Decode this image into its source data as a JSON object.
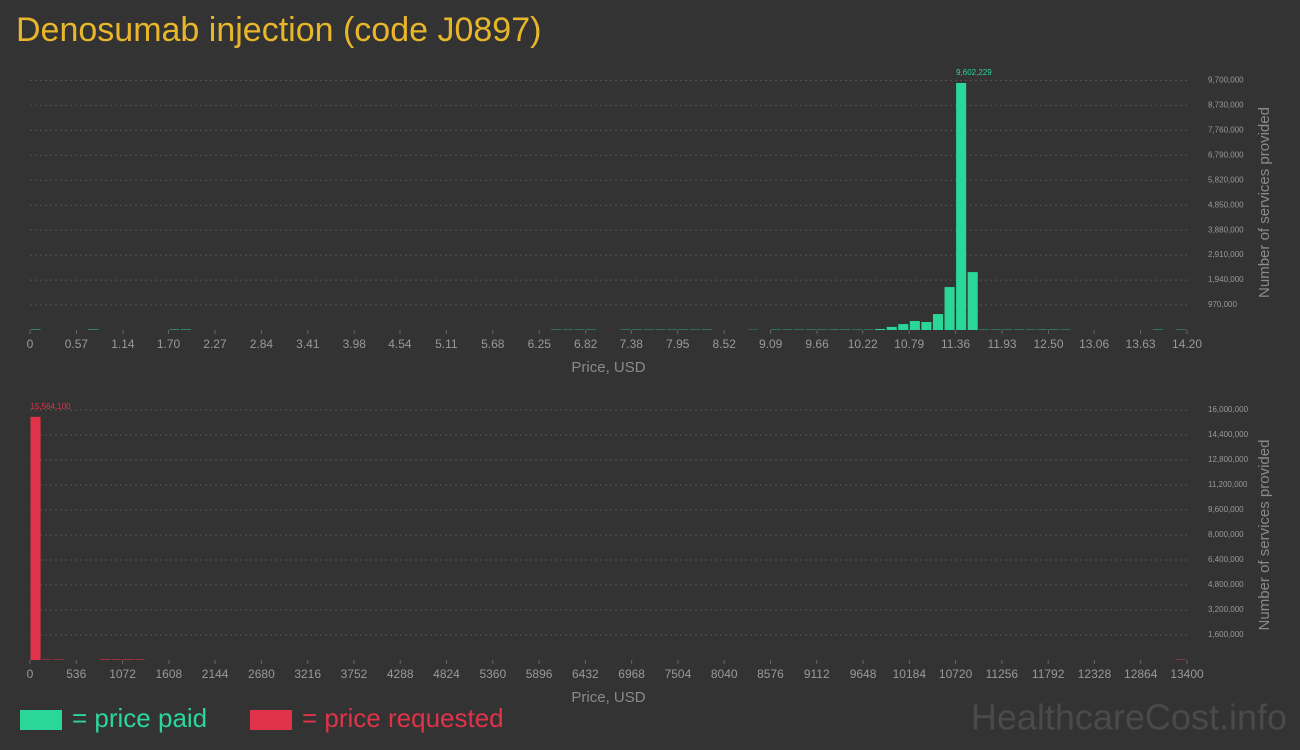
{
  "title": "Denosumab injection (code J0897)",
  "watermark": "HealthcareCost.info",
  "chart_data": [
    {
      "type": "histogram",
      "x_label": "Price, USD",
      "y_label": "Number of services provided",
      "grid": true,
      "bins": [
        0,
        0.142,
        0.284,
        0.426,
        0.568,
        0.71,
        0.852,
        0.994,
        1.136,
        1.278,
        1.42,
        1.562,
        1.704,
        1.846,
        1.988,
        2.13,
        2.272,
        2.414,
        2.556,
        2.698,
        2.84,
        2.982,
        3.124,
        3.266,
        3.408,
        3.55,
        3.692,
        3.834,
        3.976,
        4.118,
        4.26,
        4.402,
        4.544,
        4.686,
        4.828,
        4.97,
        5.112,
        5.254,
        5.396,
        5.538,
        5.68,
        5.822,
        5.964,
        6.106,
        6.248,
        6.39,
        6.532,
        6.674,
        6.816,
        6.958,
        7.1,
        7.242,
        7.384,
        7.526,
        7.668,
        7.81,
        7.952,
        8.094,
        8.236,
        8.378,
        8.52,
        8.662,
        8.804,
        8.946,
        9.088,
        9.23,
        9.372,
        9.514,
        9.656,
        9.798,
        9.94,
        10.082,
        10.224,
        10.366,
        10.508,
        10.65,
        10.792,
        10.934,
        11.076,
        11.218,
        11.36,
        11.502,
        11.644,
        11.786,
        11.928,
        12.07,
        12.212,
        12.354,
        12.496,
        12.638,
        12.78,
        12.922,
        13.064,
        13.206,
        13.348,
        13.49,
        13.632,
        13.774,
        13.916,
        14.058,
        14.2
      ],
      "series": [
        {
          "name": "= price paid",
          "color": "#2bd699",
          "values": [
            20000,
            0,
            0,
            0,
            0,
            20000,
            0,
            0,
            0,
            0,
            0,
            0,
            20000,
            20000,
            0,
            0,
            0,
            0,
            0,
            0,
            0,
            0,
            0,
            0,
            0,
            0,
            0,
            0,
            0,
            0,
            0,
            0,
            0,
            0,
            0,
            0,
            0,
            0,
            0,
            0,
            0,
            0,
            0,
            0,
            0,
            15000,
            15000,
            15000,
            15000,
            0,
            0,
            15000,
            15000,
            15000,
            15000,
            15000,
            15000,
            15000,
            15000,
            0,
            0,
            0,
            10000,
            0,
            15000,
            15000,
            15000,
            15000,
            15000,
            15000,
            15000,
            15000,
            15000,
            40000,
            120000,
            230000,
            350000,
            310000,
            620000,
            1670000,
            9602229,
            2250000,
            15000,
            15000,
            15000,
            15000,
            15000,
            15000,
            15000,
            15000,
            0,
            0,
            0,
            0,
            0,
            0,
            0,
            15000,
            0,
            15000
          ],
          "value_labels": {
            "80": "9,602,229"
          }
        }
      ],
      "xlim": [
        0,
        14.2
      ],
      "xticks": [
        0,
        0.57,
        1.14,
        {
          "value": 1.7,
          "label": "1.70"
        },
        2.27,
        2.84,
        3.41,
        3.98,
        4.54,
        5.11,
        5.68,
        6.25,
        6.82,
        7.38,
        7.95,
        8.52,
        9.09,
        9.66,
        10.22,
        10.79,
        11.36,
        11.93,
        {
          "value": 12.5,
          "label": "12.50"
        },
        13.06,
        13.63,
        {
          "value": 14.2,
          "label": "14.20"
        }
      ],
      "ylim": [
        0,
        10300000
      ],
      "yticks": [
        {
          "value": 970000,
          "label": "970,000"
        },
        {
          "value": 1940000,
          "label": "1,940,000"
        },
        {
          "value": 2910000,
          "label": "2,910,000"
        },
        {
          "value": 3880000,
          "label": "3,880,000"
        },
        {
          "value": 4850000,
          "label": "4,850,000"
        },
        {
          "value": 5820000,
          "label": "5,820,000"
        },
        {
          "value": 6790000,
          "label": "6,790,000"
        },
        {
          "value": 7760000,
          "label": "7,760,000"
        },
        {
          "value": 8730000,
          "label": "8,730,000"
        },
        {
          "value": 9700000,
          "label": "9,700,000"
        }
      ]
    },
    {
      "type": "histogram",
      "x_label": "Price, USD",
      "y_label": "Number of services provided",
      "grid": true,
      "bins": [
        0,
        134,
        268,
        402,
        536,
        670,
        804,
        938,
        1072,
        1206,
        1340,
        1474,
        1608,
        1742,
        1876,
        2010,
        2144,
        2278,
        2412,
        2546,
        2680,
        2814,
        2948,
        3082,
        3216,
        3350,
        3484,
        3618,
        3752,
        3886,
        4020,
        4154,
        4288,
        4422,
        4556,
        4690,
        4824,
        4958,
        5092,
        5226,
        5360,
        5494,
        5628,
        5762,
        5896,
        6030,
        6164,
        6298,
        6432,
        6566,
        6700,
        6834,
        6968,
        7102,
        7236,
        7370,
        7504,
        7638,
        7772,
        7906,
        8040,
        8174,
        8308,
        8442,
        8576,
        8710,
        8844,
        8978,
        9112,
        9246,
        9380,
        9514,
        9648,
        9782,
        9916,
        10050,
        10184,
        10318,
        10452,
        10586,
        10720,
        10854,
        10988,
        11122,
        11256,
        11390,
        11524,
        11658,
        11792,
        11926,
        12060,
        12194,
        12328,
        12462,
        12596,
        12730,
        12864,
        12998,
        13132,
        13266,
        13400
      ],
      "series": [
        {
          "name": "= price requested",
          "color": "#e0334a",
          "values": [
            15564100,
            30000,
            30000,
            0,
            0,
            0,
            40000,
            40000,
            40000,
            40000,
            0,
            0,
            0,
            0,
            0,
            0,
            0,
            0,
            0,
            0,
            0,
            0,
            0,
            0,
            0,
            0,
            0,
            0,
            0,
            0,
            0,
            0,
            0,
            0,
            0,
            0,
            0,
            0,
            0,
            0,
            0,
            0,
            0,
            0,
            0,
            0,
            0,
            0,
            0,
            0,
            0,
            0,
            0,
            0,
            0,
            0,
            0,
            0,
            0,
            0,
            0,
            0,
            0,
            0,
            0,
            0,
            0,
            0,
            0,
            0,
            0,
            0,
            0,
            0,
            0,
            0,
            0,
            0,
            0,
            0,
            0,
            0,
            0,
            0,
            0,
            0,
            0,
            0,
            0,
            0,
            0,
            0,
            0,
            0,
            0,
            0,
            0,
            0,
            0,
            30000
          ],
          "value_labels": {
            "0": "15,564,100"
          }
        }
      ],
      "xlim": [
        0,
        13400
      ],
      "xticks": [
        0,
        536,
        1072,
        1608,
        2144,
        2680,
        3216,
        3752,
        4288,
        4824,
        5360,
        5896,
        6432,
        6968,
        7504,
        8040,
        8576,
        9112,
        9648,
        10184,
        10720,
        11256,
        11792,
        12328,
        12864,
        13400
      ],
      "ylim": [
        0,
        16640000
      ],
      "yticks": [
        {
          "value": 1600000,
          "label": "1,600,000"
        },
        {
          "value": 3200000,
          "label": "3,200,000"
        },
        {
          "value": 4800000,
          "label": "4,800,000"
        },
        {
          "value": 6400000,
          "label": "6,400,000"
        },
        {
          "value": 8000000,
          "label": "8,000,000"
        },
        {
          "value": 9600000,
          "label": "9,600,000"
        },
        {
          "value": 11200000,
          "label": "11,200,000"
        },
        {
          "value": 12800000,
          "label": "12,800,000"
        },
        {
          "value": 14400000,
          "label": "14,400,000"
        },
        {
          "value": 16000000,
          "label": "16,000,000"
        }
      ]
    }
  ]
}
